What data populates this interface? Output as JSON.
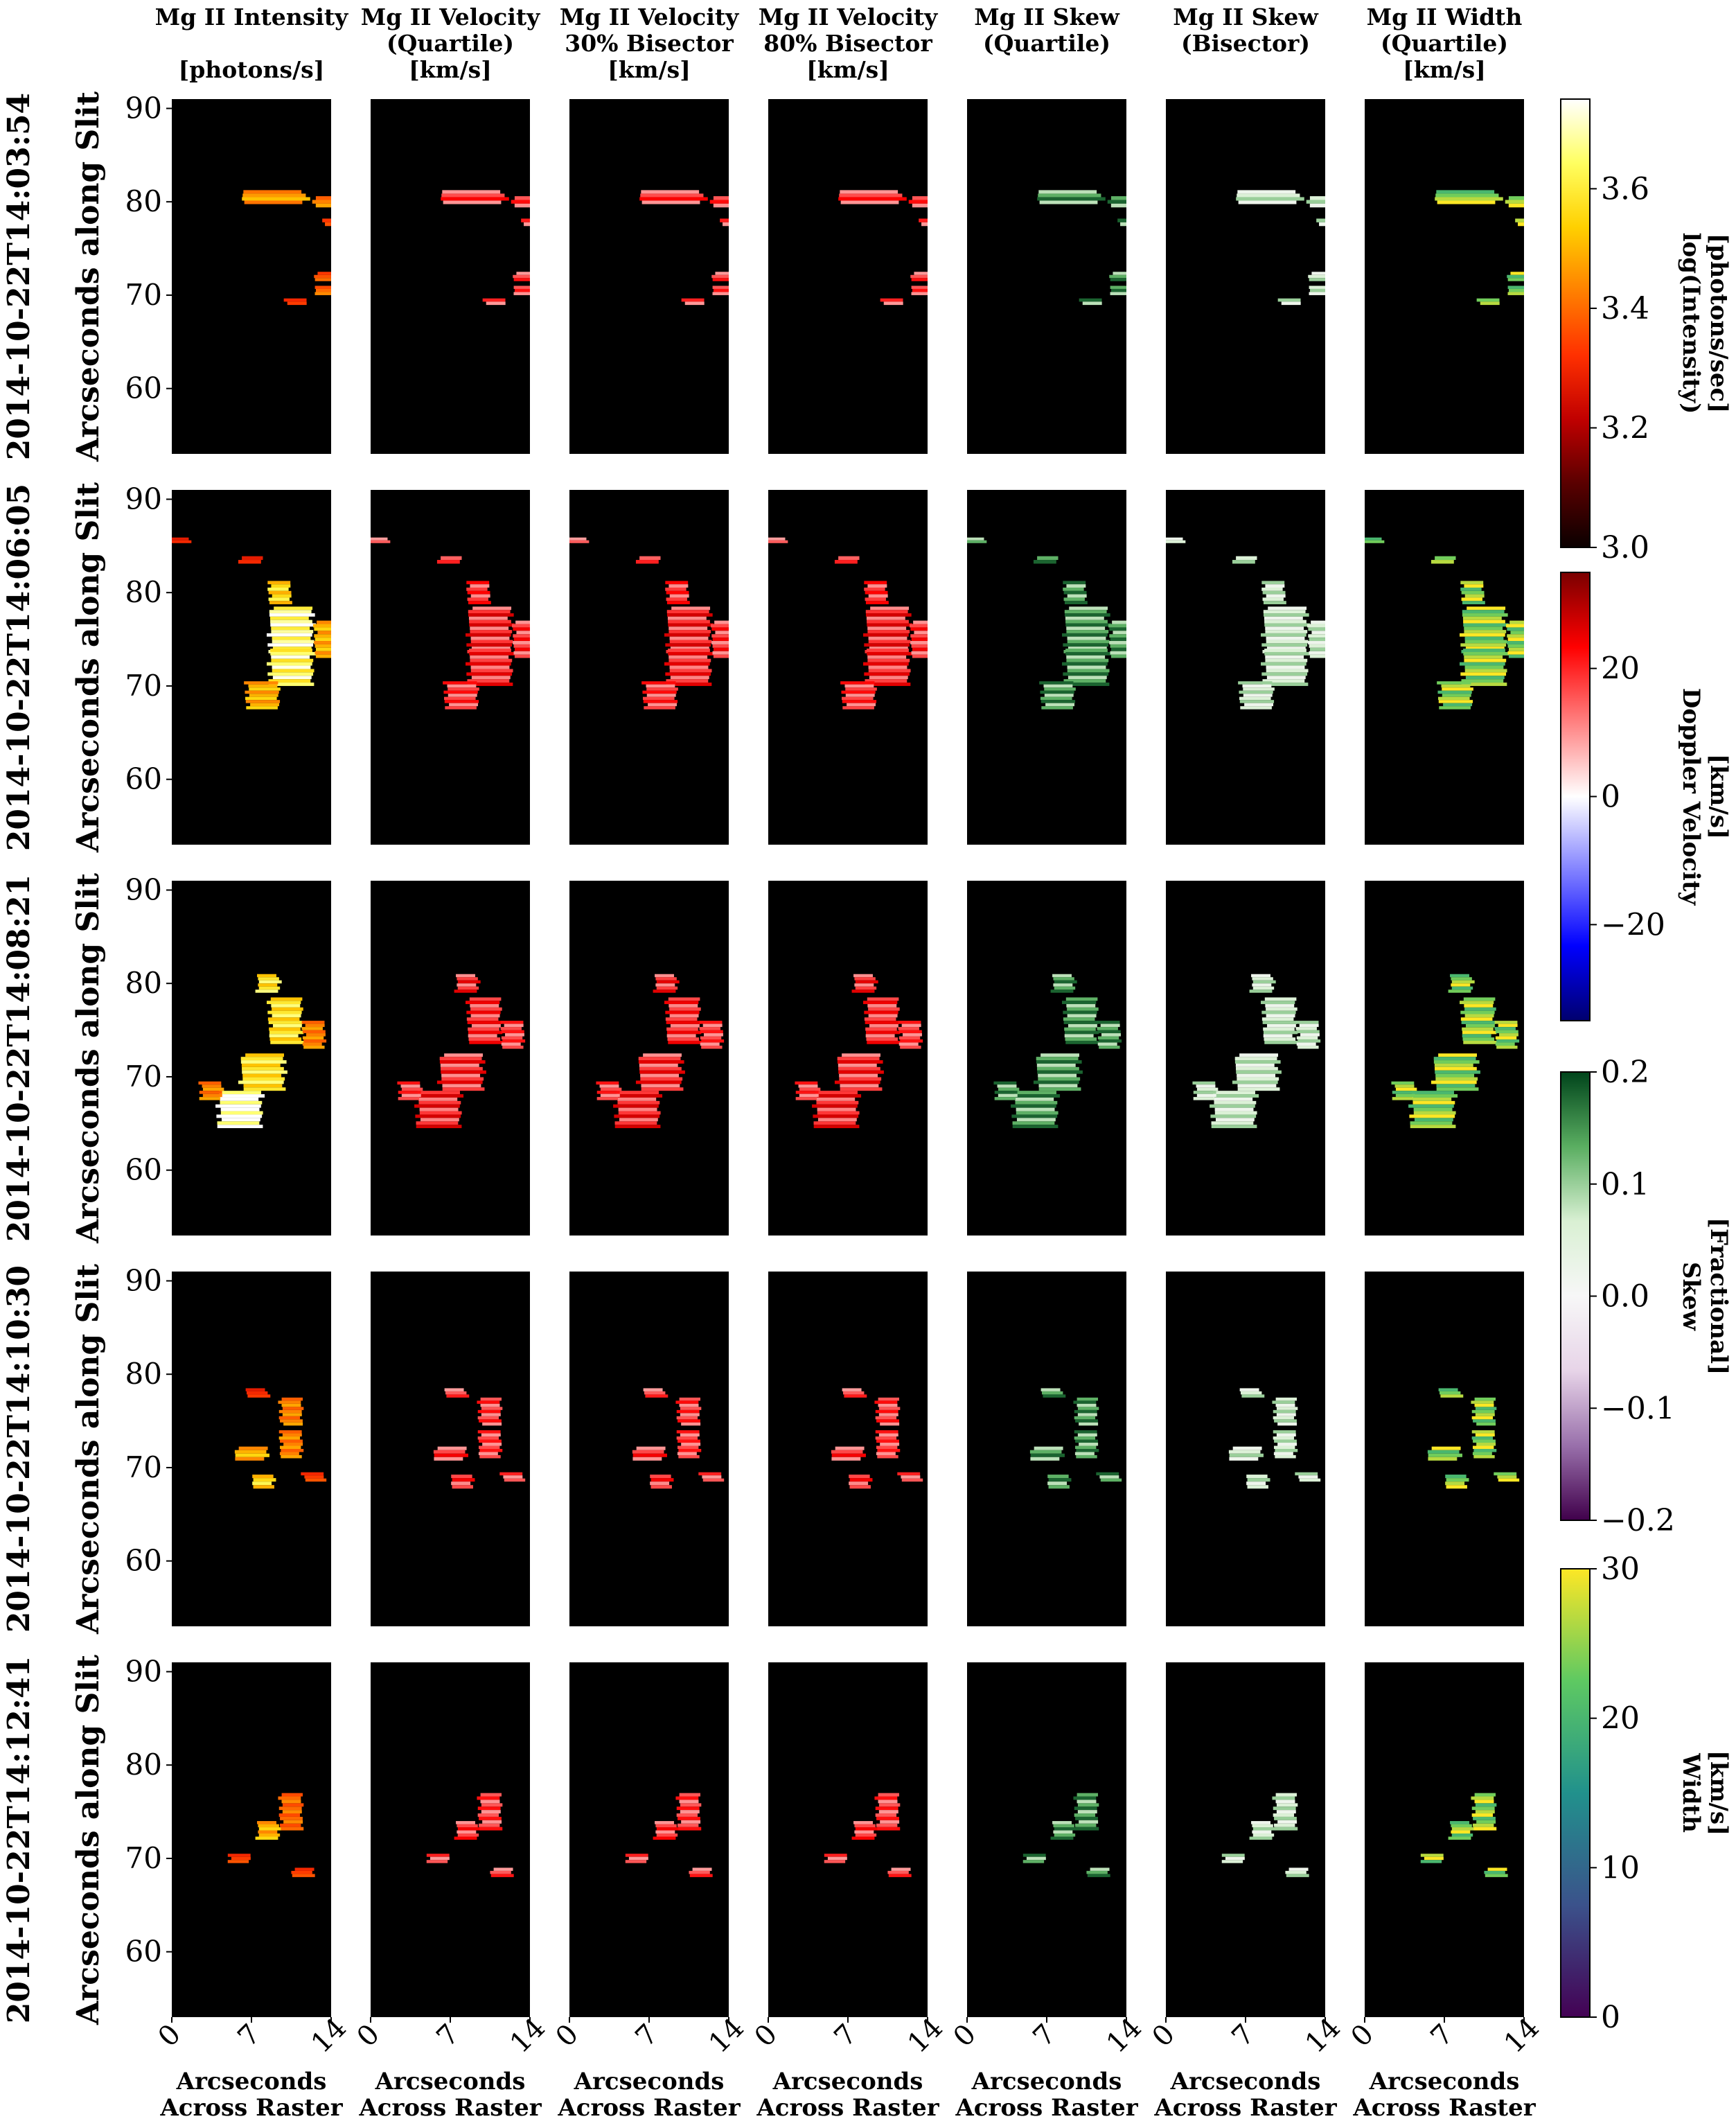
{
  "figure": {
    "columns": [
      {
        "id": "intensity",
        "title_lines": [
          "Mg II Intensity",
          "",
          "[photons/s]"
        ],
        "cmap": "hot"
      },
      {
        "id": "vel_quartile",
        "title_lines": [
          "Mg II Velocity",
          "(Quartile)",
          "[km/s]"
        ],
        "cmap": "bwr"
      },
      {
        "id": "vel_bis30",
        "title_lines": [
          "Mg II Velocity",
          "30% Bisector",
          "[km/s]"
        ],
        "cmap": "bwr"
      },
      {
        "id": "vel_bis80",
        "title_lines": [
          "Mg II Velocity",
          "80% Bisector",
          "[km/s]"
        ],
        "cmap": "bwr"
      },
      {
        "id": "skew_quartile",
        "title_lines": [
          "Mg II Skew",
          "(Quartile)",
          ""
        ],
        "cmap": "prgn"
      },
      {
        "id": "skew_bisector",
        "title_lines": [
          "Mg II Skew",
          "(Bisector)",
          ""
        ],
        "cmap": "prgn"
      },
      {
        "id": "width_quartile",
        "title_lines": [
          "Mg II Width",
          "(Quartile)",
          "[km/s]"
        ],
        "cmap": "viridis"
      }
    ],
    "rows": [
      {
        "time": "2014-10-22T14:03:54",
        "ylabel": "Arcseconds along Slit"
      },
      {
        "time": "2014-10-22T14:06:05",
        "ylabel": "Arcseconds along Slit"
      },
      {
        "time": "2014-10-22T14:08:21",
        "ylabel": "Arcseconds along Slit"
      },
      {
        "time": "2014-10-22T14:10:30",
        "ylabel": "Arcseconds along Slit"
      },
      {
        "time": "2014-10-22T14:12:41",
        "ylabel": "Arcseconds along Slit"
      }
    ],
    "xlabel_lines": [
      "Arcseconds",
      "Across Raster"
    ],
    "x_ticks": [
      "0",
      "7",
      "14"
    ],
    "y_ticks": [
      "60",
      "70",
      "80",
      "90"
    ],
    "colorbars": [
      {
        "id": "cb-intensity",
        "cmap": "hot",
        "label_lines": [
          "log(Intensity)",
          "[photons/sec]"
        ],
        "range": [
          3.0,
          3.75
        ],
        "ticks": [
          "3.0",
          "3.2",
          "3.4",
          "3.6"
        ],
        "tick_values": [
          3.0,
          3.2,
          3.4,
          3.6
        ]
      },
      {
        "id": "cb-velocity",
        "cmap": "bwr",
        "label_lines": [
          "Doppler Velocity",
          "[km/s]"
        ],
        "range": [
          -35,
          35
        ],
        "ticks": [
          "20",
          "0",
          "−20"
        ],
        "tick_values": [
          20,
          0,
          -20
        ]
      },
      {
        "id": "cb-skew",
        "cmap": "prgn",
        "label_lines": [
          "Skew",
          "[Fractional]"
        ],
        "range": [
          -0.2,
          0.2
        ],
        "ticks": [
          "0.2",
          "0.1",
          "0.0",
          "−0.1",
          "−0.2"
        ],
        "tick_values": [
          0.2,
          0.1,
          0.0,
          -0.1,
          -0.2
        ]
      },
      {
        "id": "cb-width",
        "cmap": "viridis",
        "label_lines": [
          "Width",
          "[km/s]"
        ],
        "range": [
          0,
          30
        ],
        "ticks": [
          "30",
          "20",
          "10",
          "0"
        ],
        "tick_values": [
          30,
          20,
          10,
          0
        ]
      }
    ]
  },
  "chart_data": {
    "type": "heatmap",
    "x_range": [
      0,
      14
    ],
    "y_range": [
      53,
      91
    ],
    "rows": [
      {
        "time": "2014-10-22T14:03:54",
        "blobs": [
          {
            "x": 9.0,
            "y": 80.5,
            "w": 6,
            "h": 1.5,
            "i": 0.55
          },
          {
            "x": 13.5,
            "y": 80.0,
            "w": 2,
            "h": 1.2,
            "i": 0.5
          },
          {
            "x": 13.8,
            "y": 77.8,
            "w": 1,
            "h": 0.8,
            "i": 0.4
          },
          {
            "x": 13.5,
            "y": 72.0,
            "w": 2,
            "h": 1.0,
            "i": 0.4
          },
          {
            "x": 13.5,
            "y": 70.5,
            "w": 2,
            "h": 1.0,
            "i": 0.45
          },
          {
            "x": 11.0,
            "y": 69.3,
            "w": 2,
            "h": 0.7,
            "i": 0.35
          }
        ]
      },
      {
        "time": "2014-10-22T14:06:05",
        "blobs": [
          {
            "x": 0.8,
            "y": 85.6,
            "w": 2,
            "h": 0.6,
            "i": 0.3
          },
          {
            "x": 7.0,
            "y": 83.5,
            "w": 2,
            "h": 0.8,
            "i": 0.3
          },
          {
            "x": 9.5,
            "y": 80.0,
            "w": 2,
            "h": 2.5,
            "i": 0.7
          },
          {
            "x": 10.5,
            "y": 76.0,
            "w": 4,
            "h": 5,
            "i": 0.9
          },
          {
            "x": 10.5,
            "y": 72.0,
            "w": 4,
            "h": 4,
            "i": 0.85
          },
          {
            "x": 8.0,
            "y": 69.0,
            "w": 3,
            "h": 3,
            "i": 0.6
          },
          {
            "x": 13.5,
            "y": 75.0,
            "w": 2,
            "h": 4,
            "i": 0.6
          }
        ]
      },
      {
        "time": "2014-10-22T14:08:21",
        "blobs": [
          {
            "x": 8.5,
            "y": 80.0,
            "w": 2,
            "h": 2,
            "i": 0.75
          },
          {
            "x": 10.0,
            "y": 76.0,
            "w": 3,
            "h": 5,
            "i": 0.75
          },
          {
            "x": 12.5,
            "y": 74.5,
            "w": 2,
            "h": 3,
            "i": 0.5
          },
          {
            "x": 8.0,
            "y": 70.5,
            "w": 4,
            "h": 4,
            "i": 0.75
          },
          {
            "x": 6.0,
            "y": 66.5,
            "w": 4,
            "h": 4,
            "i": 1.0
          },
          {
            "x": 3.5,
            "y": 68.5,
            "w": 2,
            "h": 2,
            "i": 0.5
          }
        ]
      },
      {
        "time": "2014-10-22T14:10:30",
        "blobs": [
          {
            "x": 7.5,
            "y": 78.0,
            "w": 2,
            "h": 1,
            "i": 0.3
          },
          {
            "x": 10.5,
            "y": 76.0,
            "w": 2,
            "h": 3,
            "i": 0.5
          },
          {
            "x": 10.5,
            "y": 72.5,
            "w": 2,
            "h": 3,
            "i": 0.5
          },
          {
            "x": 7.0,
            "y": 71.5,
            "w": 3,
            "h": 1.5,
            "i": 0.6
          },
          {
            "x": 8.0,
            "y": 68.5,
            "w": 2,
            "h": 1.5,
            "i": 0.7
          },
          {
            "x": 12.5,
            "y": 69.0,
            "w": 2,
            "h": 1,
            "i": 0.35
          }
        ]
      },
      {
        "time": "2014-10-22T14:12:41",
        "blobs": [
          {
            "x": 8.5,
            "y": 73.0,
            "w": 2,
            "h": 2,
            "i": 0.6
          },
          {
            "x": 10.5,
            "y": 75.0,
            "w": 2,
            "h": 4,
            "i": 0.45
          },
          {
            "x": 6.0,
            "y": 70.0,
            "w": 2,
            "h": 1,
            "i": 0.35
          },
          {
            "x": 11.5,
            "y": 68.5,
            "w": 2,
            "h": 1,
            "i": 0.35
          }
        ]
      }
    ]
  }
}
